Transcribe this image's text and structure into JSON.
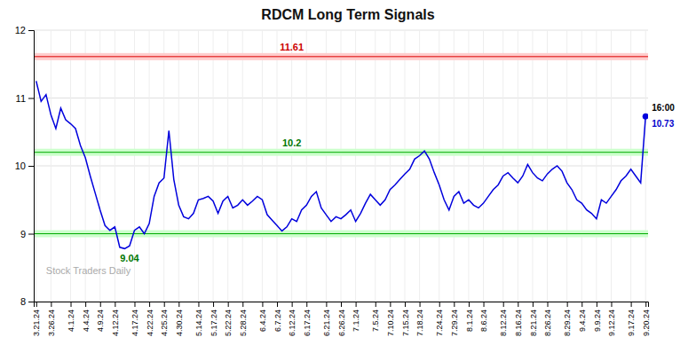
{
  "chart_data": {
    "type": "line",
    "title": "RDCM Long Term Signals",
    "color": "#0000dd",
    "grid": true,
    "ylim": [
      8,
      12
    ],
    "yticks": [
      8,
      9,
      10,
      11,
      12
    ],
    "categories": [
      "3.21.24",
      null,
      null,
      "3.26.24",
      null,
      null,
      null,
      "4.1.24",
      null,
      null,
      "4.4.24",
      null,
      null,
      "4.9.24",
      null,
      null,
      "4.12.24",
      null,
      null,
      null,
      "4.17.24",
      null,
      null,
      "4.22.24",
      null,
      null,
      "4.25.24",
      null,
      null,
      "4.30.24",
      null,
      null,
      null,
      "5.14.24",
      null,
      null,
      "5.17.24",
      null,
      null,
      "5.22.24",
      null,
      null,
      "5.28.24",
      null,
      null,
      null,
      "6.4.24",
      null,
      null,
      "6.7.24",
      null,
      null,
      "6.12.24",
      null,
      null,
      "6.17.24",
      null,
      null,
      null,
      "6.21.24",
      null,
      null,
      "6.26.24",
      null,
      null,
      "7.1.24",
      null,
      null,
      null,
      "7.5.24",
      null,
      null,
      "7.10.24",
      null,
      null,
      "7.15.24",
      null,
      null,
      "7.18.24",
      null,
      null,
      null,
      "7.24.24",
      null,
      null,
      "7.29.24",
      null,
      null,
      "8.1.24",
      null,
      null,
      "8.6.24",
      null,
      null,
      null,
      "8.12.24",
      null,
      null,
      "8.16.24",
      null,
      null,
      "8.21.24",
      null,
      null,
      "8.26.24",
      null,
      null,
      null,
      "8.29.24",
      null,
      null,
      "9.4.24",
      null,
      null,
      "9.9.24",
      null,
      null,
      "9.12.24",
      null,
      null,
      null,
      "9.17.24",
      null,
      null,
      "9.20.24"
    ],
    "values": [
      11.25,
      10.95,
      11.05,
      10.75,
      10.55,
      10.85,
      10.68,
      10.62,
      10.55,
      10.3,
      10.12,
      9.85,
      9.6,
      9.35,
      9.12,
      9.05,
      9.1,
      8.8,
      8.78,
      8.82,
      9.05,
      9.1,
      9.0,
      9.15,
      9.55,
      9.75,
      9.82,
      10.52,
      9.8,
      9.42,
      9.25,
      9.22,
      9.3,
      9.5,
      9.52,
      9.55,
      9.48,
      9.3,
      9.48,
      9.55,
      9.38,
      9.42,
      9.5,
      9.42,
      9.48,
      9.55,
      9.5,
      9.28,
      9.2,
      9.12,
      9.04,
      9.1,
      9.22,
      9.18,
      9.35,
      9.42,
      9.55,
      9.62,
      9.38,
      9.28,
      9.18,
      9.25,
      9.22,
      9.28,
      9.35,
      9.18,
      9.3,
      9.45,
      9.58,
      9.5,
      9.42,
      9.5,
      9.65,
      9.72,
      9.8,
      9.88,
      9.95,
      10.1,
      10.15,
      10.22,
      10.1,
      9.9,
      9.72,
      9.5,
      9.35,
      9.55,
      9.62,
      9.45,
      9.5,
      9.42,
      9.38,
      9.45,
      9.55,
      9.65,
      9.72,
      9.85,
      9.9,
      9.82,
      9.75,
      9.85,
      10.02,
      9.9,
      9.82,
      9.78,
      9.88,
      9.95,
      10.0,
      9.92,
      9.75,
      9.65,
      9.5,
      9.45,
      9.35,
      9.3,
      9.22,
      9.5,
      9.45,
      9.55,
      9.65,
      9.78,
      9.85,
      9.95,
      9.85,
      9.75,
      10.73
    ],
    "reference_lines": [
      {
        "value": 11.61,
        "color": "#dd0000",
        "band_color": "#ffcccc",
        "label": "11.61",
        "label_color": "#cc0000"
      },
      {
        "value": 10.2,
        "color": "#00aa00",
        "band_color": "#ccffcc",
        "label": "10.2",
        "label_color": "#007700"
      },
      {
        "value": 9.0,
        "color": "#00aa00",
        "band_color": "#ccffcc"
      }
    ],
    "min_label": {
      "text": "9.04",
      "color": "#007700"
    },
    "last_point": {
      "time": "16:00",
      "value_label": "10.73",
      "color": "#0000cc"
    },
    "watermark": {
      "text": "Stock Traders Daily",
      "color": "#aaaaaa"
    }
  }
}
